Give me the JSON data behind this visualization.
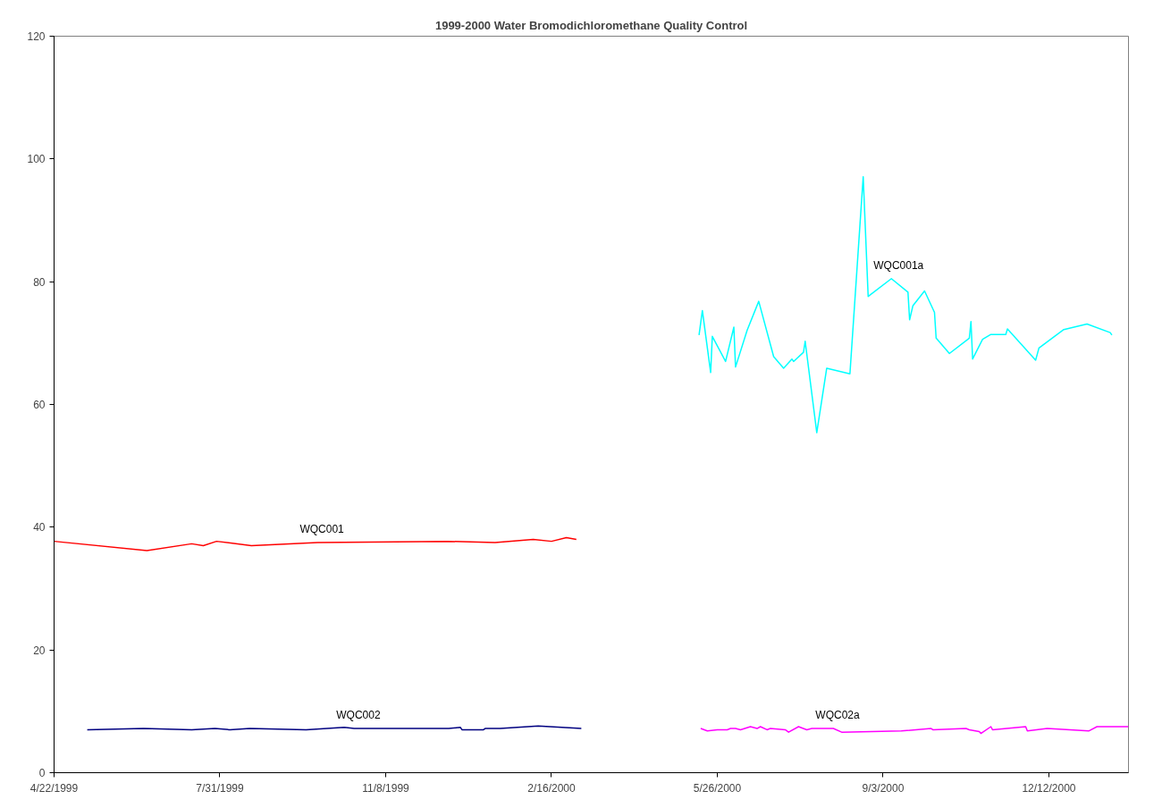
{
  "chart_data": {
    "type": "line",
    "title": "1999-2000 Water Bromodichloromethane Quality Control",
    "xlim": [
      "1999-04-22",
      "2001-01-29"
    ],
    "xticks": [
      {
        "value": "1999-04-22",
        "label": "4/22/1999"
      },
      {
        "value": "1999-07-31",
        "label": "7/31/1999"
      },
      {
        "value": "1999-11-08",
        "label": "11/8/1999"
      },
      {
        "value": "2000-02-16",
        "label": "2/16/2000"
      },
      {
        "value": "2000-05-26",
        "label": "5/26/2000"
      },
      {
        "value": "2000-09-03",
        "label": "9/3/2000"
      },
      {
        "value": "2000-12-12",
        "label": "12/12/2000"
      }
    ],
    "ylim": [
      0,
      120
    ],
    "yticks": [
      0,
      20,
      40,
      60,
      80,
      100,
      120
    ],
    "grid": false,
    "series": [
      {
        "name": "WQC001",
        "color": "#ff0000",
        "x": [
          "1999-04-22",
          "1999-06-17",
          "1999-07-14",
          "1999-07-21",
          "1999-07-29",
          "1999-08-19",
          "1999-09-28",
          "1999-12-15",
          "2000-01-13",
          "2000-02-05",
          "2000-02-16",
          "2000-02-25",
          "2000-03-02"
        ],
        "values": [
          37.7,
          36.2,
          37.3,
          37.0,
          37.7,
          37.0,
          37.5,
          37.7,
          37.5,
          38.0,
          37.7,
          38.3,
          38.0
        ]
      },
      {
        "name": "WQC002",
        "color": "#000080",
        "x": [
          "1999-05-12",
          "1999-06-15",
          "1999-07-14",
          "1999-07-28",
          "1999-08-06",
          "1999-08-18",
          "1999-09-21",
          "1999-10-14",
          "1999-10-20",
          "1999-12-16",
          "1999-12-23",
          "1999-12-24",
          "2000-01-06",
          "2000-01-07",
          "2000-01-16",
          "2000-02-08",
          "2000-03-05"
        ],
        "values": [
          7.0,
          7.2,
          7.0,
          7.2,
          7.0,
          7.2,
          7.0,
          7.4,
          7.2,
          7.2,
          7.4,
          7.0,
          7.0,
          7.2,
          7.2,
          7.6,
          7.2
        ]
      },
      {
        "name": "WQC001a",
        "color": "#00ffff",
        "x": [
          "2000-05-15",
          "2000-05-17",
          "2000-05-22",
          "2000-05-23",
          "2000-05-31",
          "2000-06-05",
          "2000-06-06",
          "2000-06-13",
          "2000-06-20",
          "2000-06-29",
          "2000-07-05",
          "2000-07-10",
          "2000-07-11",
          "2000-07-17",
          "2000-07-18",
          "2000-07-25",
          "2000-07-31",
          "2000-08-14",
          "2000-08-22",
          "2000-08-25",
          "2000-09-08",
          "2000-09-18",
          "2000-09-19",
          "2000-09-21",
          "2000-09-28",
          "2000-10-04",
          "2000-10-05",
          "2000-10-13",
          "2000-10-25",
          "2000-10-26",
          "2000-10-27",
          "2000-11-02",
          "2000-11-07",
          "2000-11-16",
          "2000-11-17",
          "2000-12-04",
          "2000-12-06",
          "2000-12-21",
          "2001-01-04",
          "2001-01-18",
          "2001-01-19"
        ],
        "values": [
          71.3,
          75.3,
          65.2,
          71.1,
          67.0,
          72.6,
          66.1,
          72.1,
          76.8,
          67.8,
          65.9,
          67.4,
          67.0,
          68.5,
          70.3,
          55.4,
          65.9,
          65.0,
          97.1,
          77.6,
          80.5,
          78.3,
          73.8,
          76.1,
          78.5,
          75.0,
          70.8,
          68.3,
          70.8,
          73.5,
          67.4,
          70.6,
          71.4,
          71.4,
          72.3,
          67.2,
          69.2,
          72.2,
          73.1,
          71.7,
          71.3
        ]
      },
      {
        "name": "WQC02a",
        "color": "#ff00ff",
        "x": [
          "2000-05-16",
          "2000-05-20",
          "2000-05-26",
          "2000-06-01",
          "2000-06-03",
          "2000-06-06",
          "2000-06-09",
          "2000-06-15",
          "2000-06-19",
          "2000-06-21",
          "2000-06-25",
          "2000-06-27",
          "2000-07-06",
          "2000-07-08",
          "2000-07-14",
          "2000-07-19",
          "2000-07-22",
          "2000-08-04",
          "2000-08-09",
          "2000-09-14",
          "2000-10-02",
          "2000-10-03",
          "2000-10-23",
          "2000-10-25",
          "2000-10-31",
          "2000-11-01",
          "2000-11-07",
          "2000-11-08",
          "2000-11-28",
          "2000-11-29",
          "2000-12-11",
          "2001-01-05",
          "2001-01-10",
          "2001-01-29"
        ],
        "values": [
          7.2,
          6.8,
          7.0,
          7.0,
          7.2,
          7.2,
          7.0,
          7.5,
          7.2,
          7.5,
          7.0,
          7.2,
          7.0,
          6.6,
          7.5,
          7.0,
          7.2,
          7.2,
          6.6,
          6.8,
          7.2,
          7.0,
          7.2,
          7.0,
          6.7,
          6.4,
          7.5,
          7.0,
          7.5,
          6.8,
          7.2,
          6.8,
          7.5,
          7.5
        ]
      }
    ]
  }
}
